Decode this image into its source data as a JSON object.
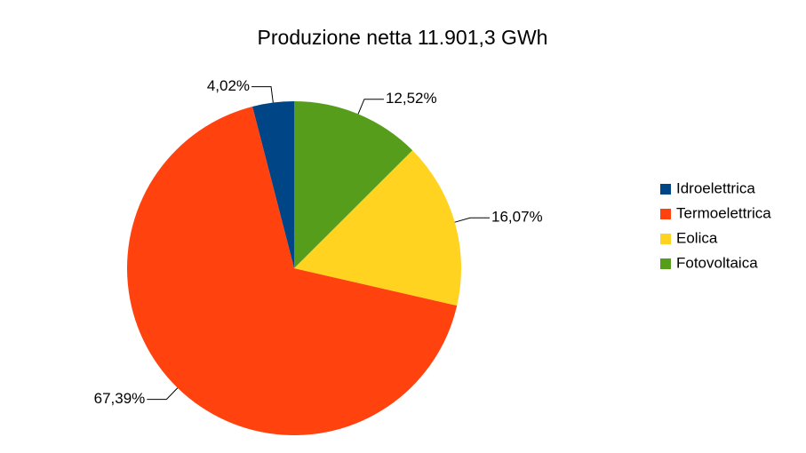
{
  "chart_data": {
    "type": "pie",
    "title": "Produzione netta 11.901,3 GWh",
    "categories": [
      "Idroelettrica",
      "Termoelettrica",
      "Eolica",
      "Fotovoltaica"
    ],
    "values": [
      4.02,
      67.39,
      16.07,
      12.52
    ],
    "value_labels": [
      "4,02%",
      "67,39%",
      "16,07%",
      "12,52%"
    ],
    "colors": [
      "#004586",
      "#ff420e",
      "#ffd320",
      "#579d1c"
    ],
    "legend": "right"
  }
}
